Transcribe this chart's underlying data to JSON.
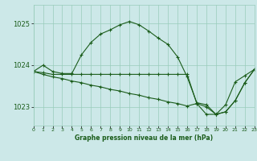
{
  "title": "Graphe pression niveau de la mer (hPa)",
  "bg_color": "#cce8e8",
  "grid_color": "#99ccbb",
  "line_color": "#1a5c1a",
  "xlim": [
    0,
    23
  ],
  "ylim": [
    1022.55,
    1025.45
  ],
  "yticks": [
    1023,
    1024,
    1025
  ],
  "ytick_labels": [
    "1023",
    "1024",
    "1025"
  ],
  "xticks": [
    0,
    1,
    2,
    3,
    4,
    5,
    6,
    7,
    8,
    9,
    10,
    11,
    12,
    13,
    14,
    15,
    16,
    17,
    18,
    19,
    20,
    21,
    22,
    23
  ],
  "series": [
    [
      1023.85,
      1024.0,
      1023.85,
      1023.8,
      1023.8,
      1024.25,
      1024.55,
      1024.75,
      1024.85,
      1024.97,
      1025.05,
      1024.97,
      1024.82,
      1024.65,
      1024.5,
      1024.2,
      1023.72,
      1023.1,
      1023.05,
      1022.82,
      1023.05,
      1023.6,
      1023.75,
      1023.9
    ],
    [
      1023.85,
      1023.82,
      1023.78,
      1023.78,
      1023.78,
      1023.78,
      1023.78,
      1023.78,
      1023.78,
      1023.78,
      1023.78,
      1023.78,
      1023.78,
      1023.78,
      1023.78,
      1023.78,
      1023.78,
      1023.08,
      1023.0,
      1022.82,
      1022.88,
      1023.15,
      1023.58,
      1023.9
    ],
    [
      1023.85,
      1023.78,
      1023.72,
      1023.68,
      1023.62,
      1023.58,
      1023.52,
      1023.48,
      1023.42,
      1023.38,
      1023.32,
      1023.28,
      1023.22,
      1023.18,
      1023.12,
      1023.08,
      1023.02,
      1023.08,
      1022.82,
      1022.82,
      1022.88,
      1023.15,
      1023.58,
      1023.9
    ]
  ]
}
